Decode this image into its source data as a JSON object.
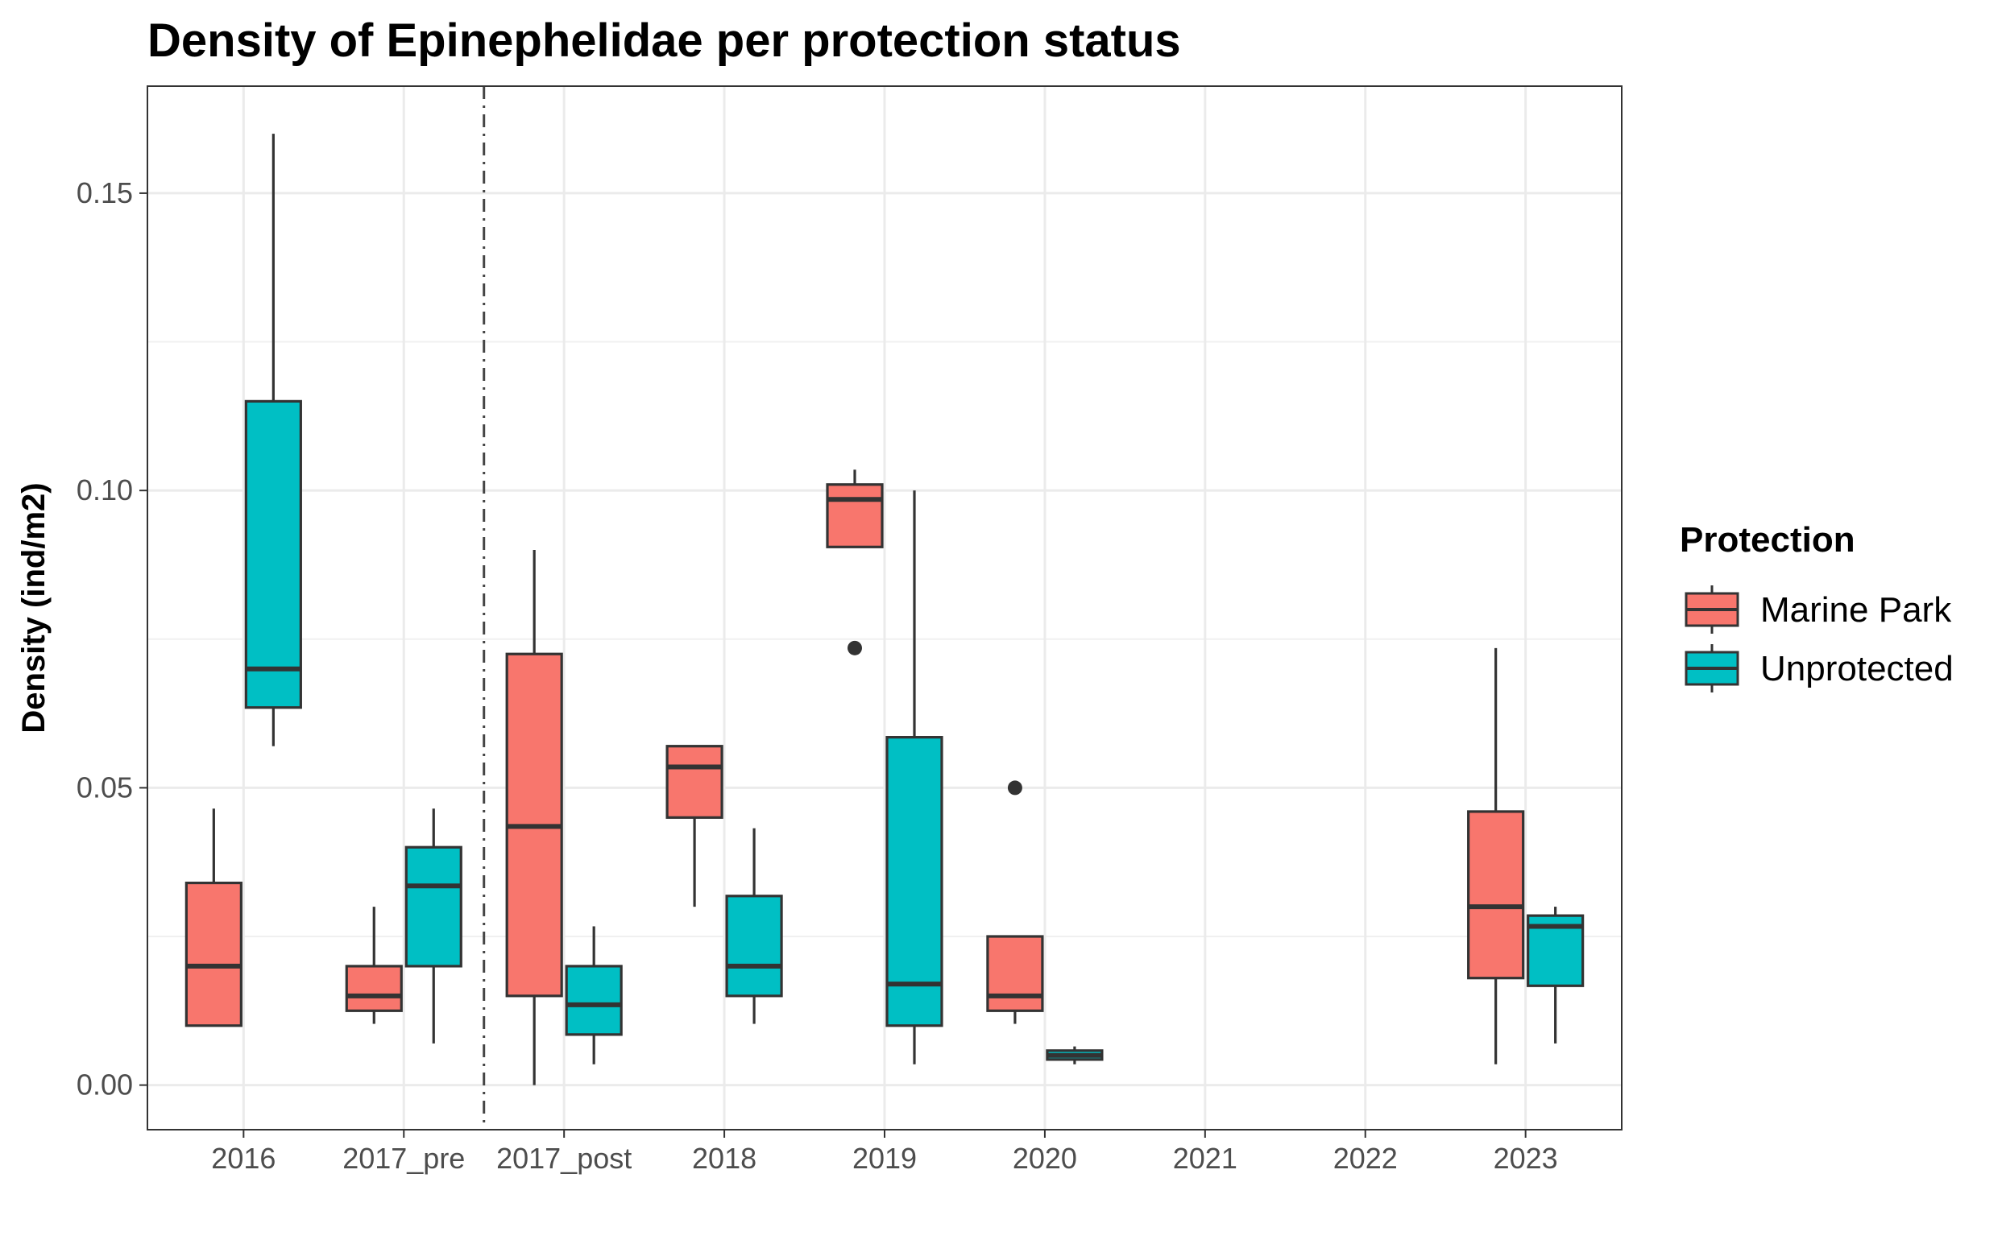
{
  "chart_data": {
    "type": "boxplot",
    "title": "Density of Epinephelidae per protection status",
    "xlabel": "",
    "ylabel": "Density (ind/m2)",
    "ylim": [
      -0.0075,
      0.168
    ],
    "yticks": [
      0.0,
      0.05,
      0.1,
      0.15
    ],
    "ytick_labels": [
      "0.00",
      "0.05",
      "0.10",
      "0.15"
    ],
    "categories": [
      "2016",
      "2017_pre",
      "2017_post",
      "2018",
      "2019",
      "2020",
      "2021",
      "2022",
      "2023"
    ],
    "grid": true,
    "reference_line": {
      "style": "dot-dash",
      "between": [
        "2017_pre",
        "2017_post"
      ]
    },
    "legend": {
      "title": "Protection",
      "placement": "right",
      "entries": [
        {
          "name": "Marine Park",
          "color": "#F8766D"
        },
        {
          "name": "Unprotected",
          "color": "#00BFC4"
        }
      ]
    },
    "series": [
      {
        "name": "Marine Park",
        "color": "#F8766D",
        "boxes": [
          {
            "category": "2016",
            "lower": 0.01,
            "q1": 0.01,
            "median": 0.02,
            "q3": 0.034,
            "upper": 0.0465,
            "outliers": []
          },
          {
            "category": "2017_pre",
            "lower": 0.0103,
            "q1": 0.0125,
            "median": 0.015,
            "q3": 0.02,
            "upper": 0.03,
            "outliers": []
          },
          {
            "category": "2017_post",
            "lower": 0.0,
            "q1": 0.015,
            "median": 0.0435,
            "q3": 0.0725,
            "upper": 0.09,
            "outliers": []
          },
          {
            "category": "2018",
            "lower": 0.03,
            "q1": 0.045,
            "median": 0.0535,
            "q3": 0.057,
            "upper": 0.057,
            "outliers": []
          },
          {
            "category": "2019",
            "lower": 0.0905,
            "q1": 0.0905,
            "median": 0.0985,
            "q3": 0.101,
            "upper": 0.1035,
            "outliers": [
              0.0735
            ]
          },
          {
            "category": "2020",
            "lower": 0.0103,
            "q1": 0.0125,
            "median": 0.015,
            "q3": 0.025,
            "upper": 0.025,
            "outliers": [
              0.05
            ]
          },
          {
            "category": "2023",
            "lower": 0.0035,
            "q1": 0.018,
            "median": 0.03,
            "q3": 0.046,
            "upper": 0.0735,
            "outliers": []
          }
        ]
      },
      {
        "name": "Unprotected",
        "color": "#00BFC4",
        "boxes": [
          {
            "category": "2016",
            "lower": 0.057,
            "q1": 0.0635,
            "median": 0.07,
            "q3": 0.115,
            "upper": 0.16,
            "outliers": []
          },
          {
            "category": "2017_pre",
            "lower": 0.007,
            "q1": 0.02,
            "median": 0.0335,
            "q3": 0.04,
            "upper": 0.0465,
            "outliers": []
          },
          {
            "category": "2017_post",
            "lower": 0.0035,
            "q1": 0.0085,
            "median": 0.0135,
            "q3": 0.02,
            "upper": 0.0267,
            "outliers": []
          },
          {
            "category": "2018",
            "lower": 0.0103,
            "q1": 0.015,
            "median": 0.02,
            "q3": 0.0318,
            "upper": 0.0432,
            "outliers": []
          },
          {
            "category": "2019",
            "lower": 0.0035,
            "q1": 0.01,
            "median": 0.017,
            "q3": 0.0585,
            "upper": 0.1,
            "outliers": []
          },
          {
            "category": "2020",
            "lower": 0.0035,
            "q1": 0.0043,
            "median": 0.005,
            "q3": 0.0058,
            "upper": 0.0065,
            "outliers": []
          },
          {
            "category": "2023",
            "lower": 0.007,
            "q1": 0.0167,
            "median": 0.0267,
            "q3": 0.0285,
            "upper": 0.03,
            "outliers": []
          }
        ]
      }
    ]
  }
}
